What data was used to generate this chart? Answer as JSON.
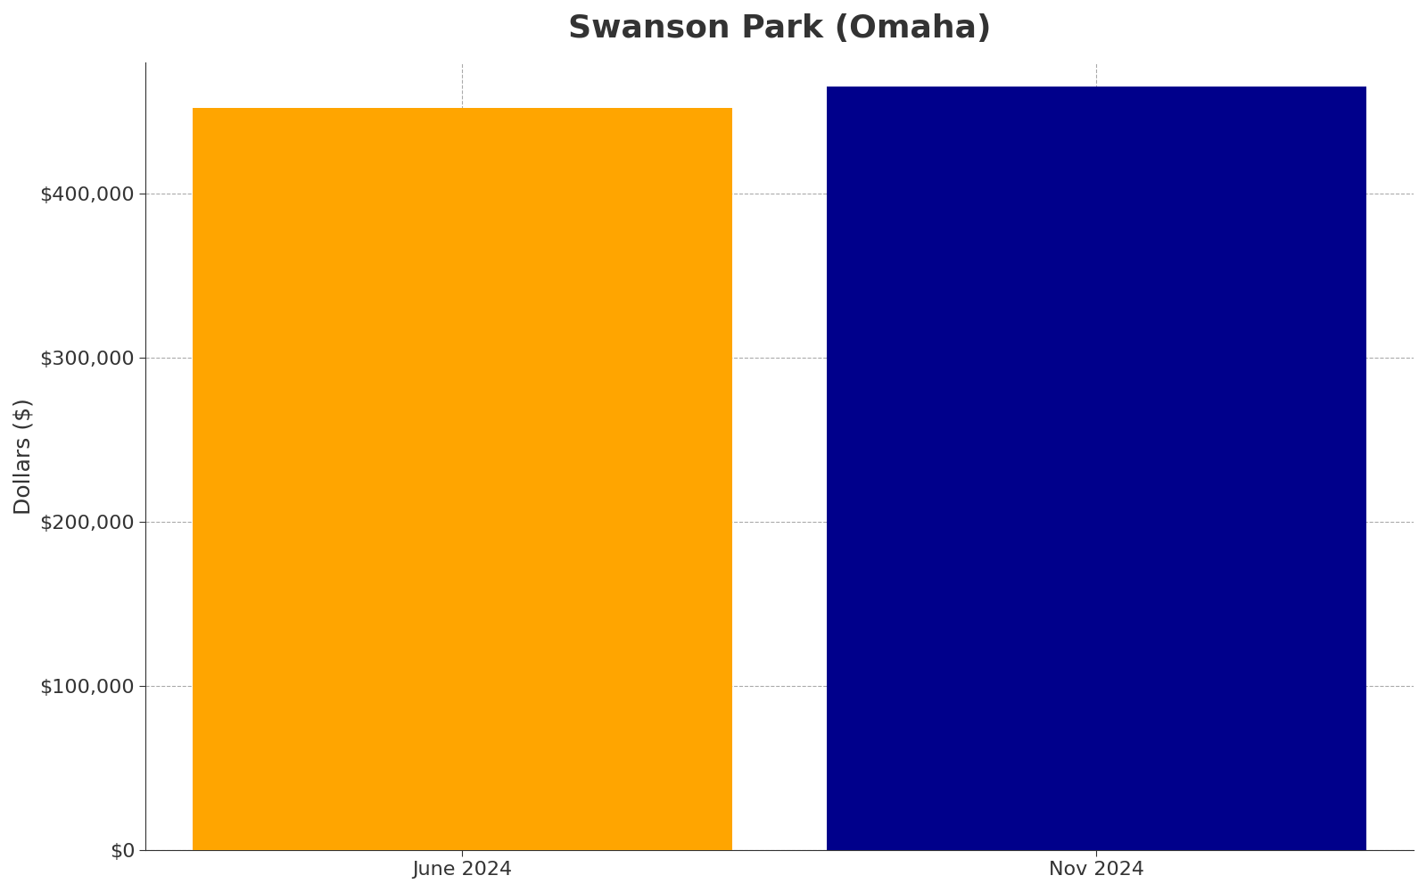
{
  "title": "Swanson Park (Omaha)",
  "categories": [
    "June 2024",
    "Nov 2024"
  ],
  "values": [
    452000,
    465000
  ],
  "bar_colors": [
    "#FFA500",
    "#00008B"
  ],
  "ylabel": "Dollars ($)",
  "ylim": [
    0,
    480000
  ],
  "yticks": [
    0,
    100000,
    200000,
    300000,
    400000
  ],
  "ytick_labels": [
    "$0",
    "$100,000",
    "$200,000",
    "$300,000",
    "$400,000"
  ],
  "title_fontsize": 26,
  "title_fontweight": "bold",
  "title_color": "#333333",
  "axis_label_fontsize": 18,
  "tick_fontsize": 16,
  "background_color": "#ffffff",
  "grid_color": "#aaaaaa",
  "bar_width": 0.85,
  "xlim": [
    -0.5,
    1.5
  ]
}
